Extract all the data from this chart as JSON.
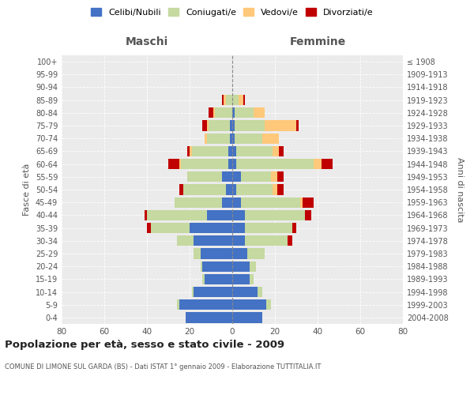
{
  "age_groups": [
    "0-4",
    "5-9",
    "10-14",
    "15-19",
    "20-24",
    "25-29",
    "30-34",
    "35-39",
    "40-44",
    "45-49",
    "50-54",
    "55-59",
    "60-64",
    "65-69",
    "70-74",
    "75-79",
    "80-84",
    "85-89",
    "90-94",
    "95-99",
    "100+"
  ],
  "birth_years": [
    "2004-2008",
    "1999-2003",
    "1994-1998",
    "1989-1993",
    "1984-1988",
    "1979-1983",
    "1974-1978",
    "1969-1973",
    "1964-1968",
    "1959-1963",
    "1954-1958",
    "1949-1953",
    "1944-1948",
    "1939-1943",
    "1934-1938",
    "1929-1933",
    "1924-1928",
    "1919-1923",
    "1914-1918",
    "1909-1913",
    "≤ 1908"
  ],
  "maschi": {
    "celibi": [
      22,
      25,
      18,
      13,
      14,
      15,
      18,
      20,
      12,
      5,
      3,
      5,
      2,
      2,
      1,
      1,
      0,
      0,
      0,
      0,
      0
    ],
    "coniugati": [
      0,
      1,
      1,
      1,
      1,
      3,
      8,
      18,
      28,
      22,
      20,
      16,
      22,
      17,
      11,
      10,
      8,
      3,
      0,
      0,
      0
    ],
    "vedovi": [
      0,
      0,
      0,
      0,
      0,
      0,
      0,
      0,
      0,
      0,
      0,
      0,
      1,
      1,
      1,
      1,
      1,
      1,
      0,
      0,
      0
    ],
    "divorziati": [
      0,
      0,
      0,
      0,
      0,
      0,
      0,
      2,
      1,
      0,
      2,
      0,
      5,
      1,
      0,
      2,
      2,
      1,
      0,
      0,
      0
    ]
  },
  "femmine": {
    "nubili": [
      14,
      16,
      12,
      8,
      8,
      7,
      6,
      6,
      6,
      4,
      2,
      4,
      2,
      2,
      1,
      1,
      1,
      0,
      0,
      0,
      0
    ],
    "coniugate": [
      0,
      2,
      2,
      2,
      3,
      8,
      20,
      22,
      28,
      28,
      17,
      14,
      36,
      17,
      13,
      14,
      9,
      3,
      0,
      0,
      0
    ],
    "vedove": [
      0,
      0,
      0,
      0,
      0,
      0,
      0,
      0,
      0,
      1,
      2,
      3,
      4,
      3,
      8,
      15,
      5,
      2,
      0,
      0,
      0
    ],
    "divorziate": [
      0,
      0,
      0,
      0,
      0,
      0,
      2,
      2,
      3,
      5,
      3,
      3,
      5,
      2,
      0,
      1,
      0,
      1,
      0,
      0,
      0
    ]
  },
  "color_celibi": "#4472c4",
  "color_coniugati": "#c5d9a0",
  "color_vedovi": "#ffc87a",
  "color_divorziati": "#c00000",
  "title": "Popolazione per età, sesso e stato civile - 2009",
  "subtitle": "COMUNE DI LIMONE SUL GARDA (BS) - Dati ISTAT 1° gennaio 2009 - Elaborazione TUTTITALIA.IT",
  "xlabel_left": "Maschi",
  "xlabel_right": "Femmine",
  "ylabel_left": "Fasce di età",
  "ylabel_right": "Anni di nascita",
  "xlim": 80,
  "background_color": "#ffffff",
  "plot_bg_color": "#ebebeb",
  "grid_color": "#ffffff"
}
